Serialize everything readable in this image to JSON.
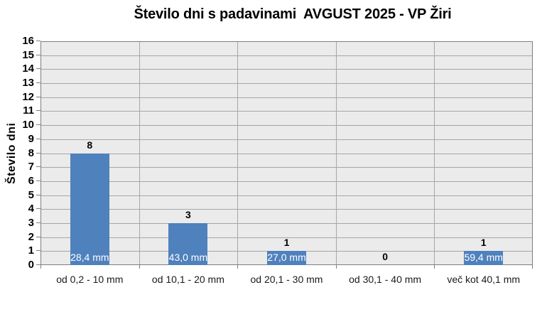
{
  "chart_data": {
    "type": "bar",
    "title": "Število dni s padavinami  AVGUST 2025 - VP Žiri",
    "categories": [
      "od 0,2 - 10 mm",
      "od 10,1 - 20 mm",
      "od 20,1 - 30 mm",
      "od 30,1 - 40 mm",
      "več kot 40,1 mm"
    ],
    "values": [
      8,
      3,
      1,
      0,
      1
    ],
    "value_labels": [
      "8",
      "3",
      "1",
      "0",
      "1"
    ],
    "bar_inner_labels": [
      "28,4 mm",
      "43,0 mm",
      "27,0 mm",
      "",
      "59,4 mm"
    ],
    "xlabel": "",
    "ylabel": "Število dni",
    "ylim": [
      0,
      16
    ],
    "ytick_step": 1,
    "grid": true,
    "legend": false,
    "colors": {
      "bar_fill": "#4F81BD",
      "plot_background": "#EBEBEB",
      "gridline": "#A6A6A6",
      "plot_border": "#7F7F7F",
      "axis_text": "#000000",
      "category_text": "#1a1a1a",
      "inner_label_text": "#FFFFFF",
      "page_background": "#FFFFFF"
    }
  }
}
